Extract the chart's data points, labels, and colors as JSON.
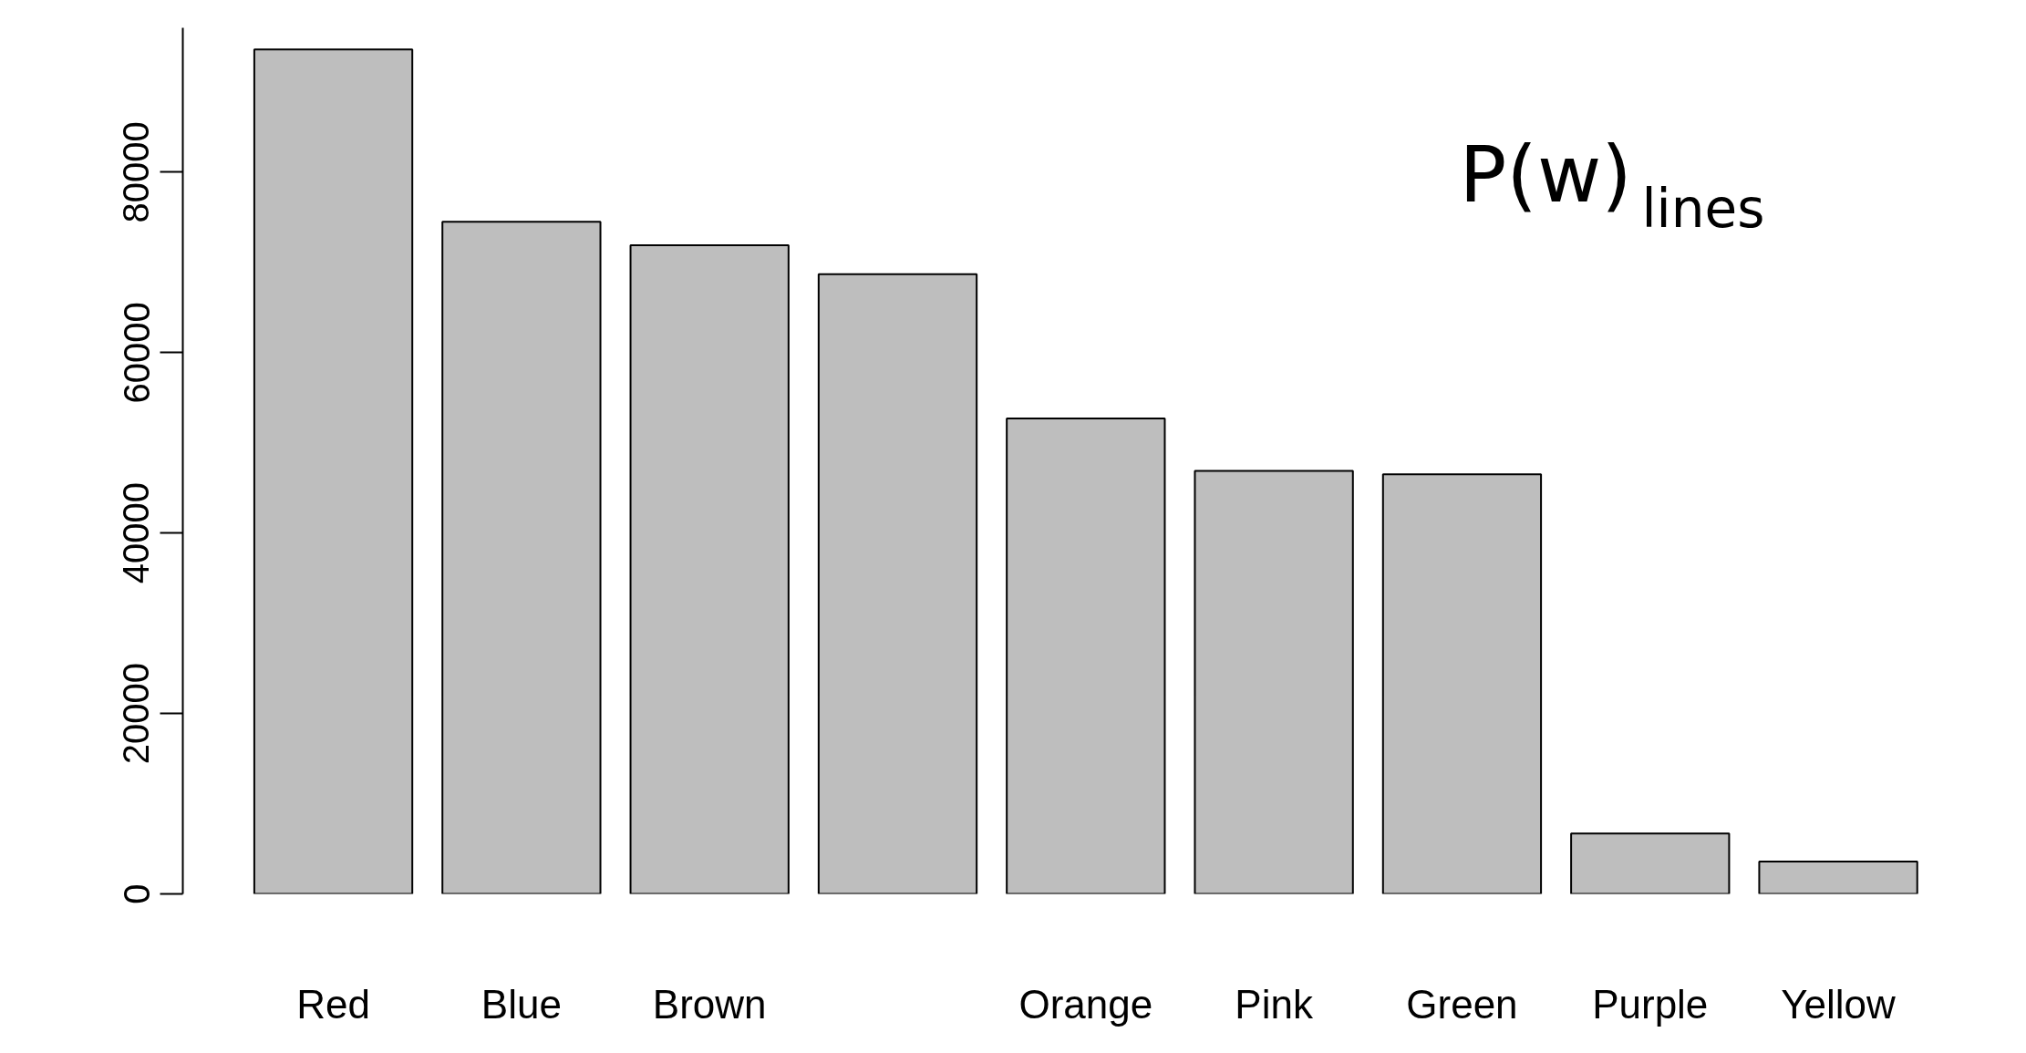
{
  "chart_data": {
    "type": "bar",
    "categories": [
      "Red",
      "Blue",
      "Brown",
      null,
      "Orange",
      "Pink",
      "Green",
      "Purple",
      "Yellow"
    ],
    "values": [
      93600,
      74500,
      71900,
      68700,
      52700,
      46900,
      46500,
      6700,
      3600
    ],
    "color": "#bebebe",
    "ylim": [
      0,
      96000
    ],
    "yticks": [
      0,
      20000,
      40000,
      60000,
      80000
    ],
    "grid": false,
    "annotations": [
      "P(w)$_{lines}$"
    ]
  }
}
